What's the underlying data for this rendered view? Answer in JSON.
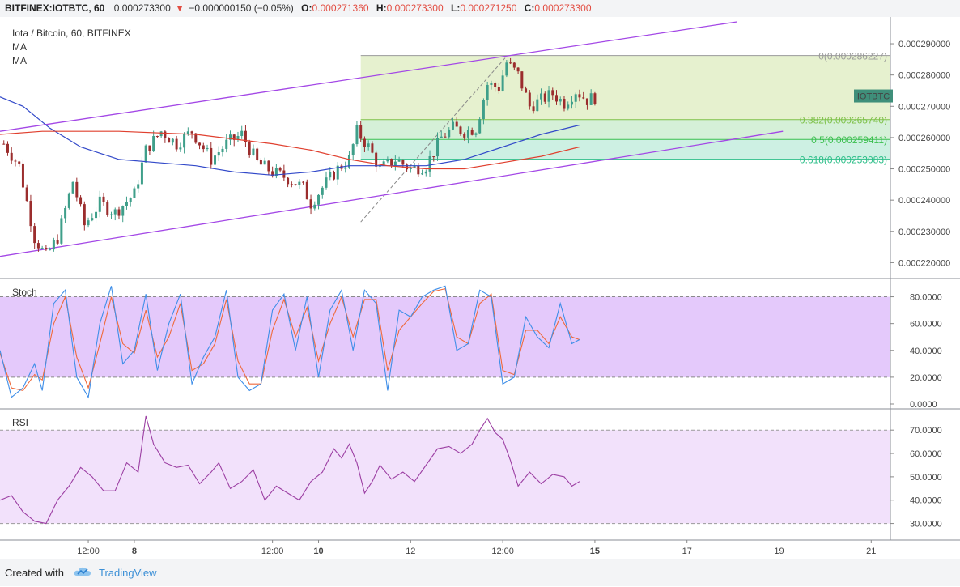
{
  "header": {
    "symbol": "BITFINEX:IOTBTC, 60",
    "last": "0.000273300",
    "change": "−0.000000150 (−0.05%)",
    "o_label": "O:",
    "o_value": "0.000271360",
    "h_label": "H:",
    "h_value": "0.000273300",
    "l_label": "L:",
    "l_value": "0.000271250",
    "c_label": "C:",
    "c_value": "0.000273300"
  },
  "legend": {
    "title": "Iota / Bitcoin, 60, BITFINEX",
    "ma1": "MA",
    "ma2": "MA"
  },
  "footer": {
    "created_with": "Created with",
    "brand": "TradingView",
    "logo_icon": "tradingview-cloud-icon"
  },
  "colors": {
    "up": "#3f9f8a",
    "down": "#9b2d2d",
    "ma_fast": "#3249c9",
    "ma_slow": "#e0402f",
    "channel": "#a347e6",
    "stoch_k": "#3e8ee8",
    "stoch_d": "#ef6a3b",
    "stoch_band": "#e4c9fb",
    "rsi_line": "#9c3fa3",
    "rsi_band": "#f2e1fb",
    "fib_top": "#e6f1cf",
    "fib_mid": "#d5f0d8",
    "fib_low": "#cdf0e3",
    "price_tag": "#3f8f7a"
  },
  "chart_data": {
    "type": "candlestick",
    "title": "Iota / Bitcoin, 60, BITFINEX",
    "price_axis": {
      "range": [
        0.000217,
        0.000297
      ],
      "ticks": [
        "0.000220000",
        "0.000230000",
        "0.000240000",
        "0.000250000",
        "0.000260000",
        "0.000270000",
        "0.000280000",
        "0.000290000"
      ],
      "tick_values": [
        0.00022,
        0.00023,
        0.00024,
        0.00025,
        0.00026,
        0.00027,
        0.00028,
        0.00029
      ]
    },
    "time_axis": {
      "ticks": [
        "12:00",
        "8",
        "12:00",
        "10",
        "12",
        "12:00",
        "15",
        "17",
        "19",
        "21"
      ],
      "tick_hours": [
        12,
        24,
        60,
        72,
        96,
        120,
        144,
        168,
        192,
        216
      ],
      "bold": [
        false,
        true,
        false,
        true,
        false,
        false,
        true,
        false,
        false,
        false
      ],
      "range_hours": [
        -11,
        221
      ]
    },
    "current_price_label": "IOTBTC",
    "current_price": 0.0002733,
    "price_path": [
      [
        -10,
        0.000258
      ],
      [
        -6,
        0.000251
      ],
      [
        -2,
        0.000228
      ],
      [
        1,
        0.000222
      ],
      [
        4,
        0.000228
      ],
      [
        8,
        0.000246
      ],
      [
        11,
        0.000232
      ],
      [
        15,
        0.000239
      ],
      [
        19,
        0.000236
      ],
      [
        24,
        0.000242
      ],
      [
        27,
        0.000256
      ],
      [
        31,
        0.000262
      ],
      [
        35,
        0.000258
      ],
      [
        39,
        0.000262
      ],
      [
        44,
        0.000253
      ],
      [
        48,
        0.000258
      ],
      [
        52,
        0.000261
      ],
      [
        56,
        0.000252
      ],
      [
        60,
        0.000249
      ],
      [
        64,
        0.000247
      ],
      [
        68,
        0.000244
      ],
      [
        70,
        0.000239
      ],
      [
        73,
        0.000244
      ],
      [
        77,
        0.00025
      ],
      [
        80,
        0.000253
      ],
      [
        82,
        0.000262
      ],
      [
        85,
        0.000257
      ],
      [
        88,
        0.00025
      ],
      [
        92,
        0.000253
      ],
      [
        96,
        0.00025
      ],
      [
        100,
        0.000251
      ],
      [
        104,
        0.00026
      ],
      [
        107,
        0.000263
      ],
      [
        110,
        0.000262
      ],
      [
        113,
        0.000263
      ],
      [
        116,
        0.000277
      ],
      [
        119,
        0.000276
      ],
      [
        121,
        0.000284
      ],
      [
        124,
        0.00028
      ],
      [
        127,
        0.00027
      ],
      [
        130,
        0.000272
      ],
      [
        133,
        0.000274
      ],
      [
        136,
        0.000271
      ],
      [
        139,
        0.000275
      ],
      [
        142,
        0.000272
      ],
      [
        144,
        0.000273
      ]
    ],
    "ma_fast_path": [
      [
        -11,
        0.000273
      ],
      [
        -5,
        0.00027
      ],
      [
        2,
        0.000263
      ],
      [
        10,
        0.000257
      ],
      [
        20,
        0.000253
      ],
      [
        30,
        0.000252
      ],
      [
        40,
        0.000251
      ],
      [
        50,
        0.000249
      ],
      [
        60,
        0.000248
      ],
      [
        70,
        0.000249
      ],
      [
        80,
        0.000251
      ],
      [
        90,
        0.000251
      ],
      [
        100,
        0.000251
      ],
      [
        110,
        0.000253
      ],
      [
        120,
        0.000257
      ],
      [
        130,
        0.000261
      ],
      [
        140,
        0.000264
      ]
    ],
    "ma_slow_path": [
      [
        -11,
        0.000261
      ],
      [
        0,
        0.000262
      ],
      [
        20,
        0.000262
      ],
      [
        40,
        0.000261
      ],
      [
        60,
        0.000258
      ],
      [
        70,
        0.000256
      ],
      [
        80,
        0.000253
      ],
      [
        90,
        0.000251
      ],
      [
        100,
        0.00025
      ],
      [
        110,
        0.00025
      ],
      [
        120,
        0.000252
      ],
      [
        130,
        0.000254
      ],
      [
        140,
        0.000257
      ]
    ],
    "channel_upper": [
      [
        -11,
        0.000262
      ],
      [
        181,
        0.000297
      ]
    ],
    "channel_lower": [
      [
        -11,
        0.000222
      ],
      [
        193,
        0.000262
      ]
    ],
    "fib_retracement": {
      "start_hour": 83,
      "end_hour": 221,
      "trend_from": [
        83,
        0.000233
      ],
      "trend_to": [
        121,
        0.000286
      ],
      "levels": [
        {
          "label": "0(0.000286227)",
          "value": 0.000286227,
          "color": "#9a9a9a"
        },
        {
          "label": "0.382(0.000265740)",
          "value": 0.00026574,
          "color": "#7ec14a"
        },
        {
          "label": "0.5(0.000259411)",
          "value": 0.000259411,
          "color": "#3cbf4f"
        },
        {
          "label": "0.618(0.000253083)",
          "value": 0.000253083,
          "color": "#2fbf8a"
        }
      ]
    },
    "stochastic": {
      "label": "Stoch",
      "range": [
        0,
        90
      ],
      "ticks": [
        "0.0000",
        "20.0000",
        "40.0000",
        "60.0000",
        "80.0000"
      ],
      "tick_values": [
        0,
        20,
        40,
        60,
        80
      ],
      "band": [
        20,
        80
      ],
      "k": [
        [
          -11,
          40
        ],
        [
          -8,
          5
        ],
        [
          -5,
          12
        ],
        [
          -2,
          30
        ],
        [
          0,
          10
        ],
        [
          3,
          75
        ],
        [
          6,
          85
        ],
        [
          9,
          20
        ],
        [
          12,
          5
        ],
        [
          15,
          60
        ],
        [
          18,
          88
        ],
        [
          21,
          30
        ],
        [
          24,
          40
        ],
        [
          27,
          82
        ],
        [
          30,
          25
        ],
        [
          33,
          60
        ],
        [
          36,
          82
        ],
        [
          39,
          15
        ],
        [
          42,
          35
        ],
        [
          45,
          50
        ],
        [
          48,
          85
        ],
        [
          51,
          20
        ],
        [
          54,
          10
        ],
        [
          57,
          15
        ],
        [
          60,
          70
        ],
        [
          63,
          82
        ],
        [
          66,
          40
        ],
        [
          69,
          80
        ],
        [
          72,
          20
        ],
        [
          75,
          70
        ],
        [
          78,
          85
        ],
        [
          81,
          40
        ],
        [
          84,
          85
        ],
        [
          87,
          75
        ],
        [
          90,
          10
        ],
        [
          93,
          70
        ],
        [
          96,
          65
        ],
        [
          99,
          80
        ],
        [
          102,
          85
        ],
        [
          105,
          88
        ],
        [
          108,
          40
        ],
        [
          111,
          45
        ],
        [
          114,
          85
        ],
        [
          117,
          80
        ],
        [
          120,
          15
        ],
        [
          123,
          20
        ],
        [
          126,
          65
        ],
        [
          129,
          50
        ],
        [
          132,
          42
        ],
        [
          135,
          75
        ],
        [
          138,
          45
        ],
        [
          140,
          48
        ]
      ],
      "d": [
        [
          -11,
          38
        ],
        [
          -8,
          12
        ],
        [
          -5,
          10
        ],
        [
          -2,
          22
        ],
        [
          0,
          18
        ],
        [
          3,
          60
        ],
        [
          6,
          80
        ],
        [
          9,
          35
        ],
        [
          12,
          12
        ],
        [
          15,
          45
        ],
        [
          18,
          80
        ],
        [
          21,
          45
        ],
        [
          24,
          38
        ],
        [
          27,
          70
        ],
        [
          30,
          35
        ],
        [
          33,
          50
        ],
        [
          36,
          75
        ],
        [
          39,
          25
        ],
        [
          42,
          30
        ],
        [
          45,
          45
        ],
        [
          48,
          78
        ],
        [
          51,
          32
        ],
        [
          54,
          15
        ],
        [
          57,
          15
        ],
        [
          60,
          55
        ],
        [
          63,
          78
        ],
        [
          66,
          50
        ],
        [
          69,
          72
        ],
        [
          72,
          32
        ],
        [
          75,
          60
        ],
        [
          78,
          80
        ],
        [
          81,
          50
        ],
        [
          84,
          78
        ],
        [
          87,
          78
        ],
        [
          90,
          25
        ],
        [
          93,
          55
        ],
        [
          96,
          65
        ],
        [
          99,
          75
        ],
        [
          102,
          84
        ],
        [
          105,
          86
        ],
        [
          108,
          50
        ],
        [
          111,
          45
        ],
        [
          114,
          75
        ],
        [
          117,
          82
        ],
        [
          120,
          25
        ],
        [
          123,
          22
        ],
        [
          126,
          55
        ],
        [
          129,
          55
        ],
        [
          132,
          45
        ],
        [
          135,
          65
        ],
        [
          138,
          50
        ],
        [
          140,
          48
        ]
      ]
    },
    "rsi": {
      "label": "RSI",
      "range": [
        25,
        77
      ],
      "ticks": [
        "30.0000",
        "40.0000",
        "50.0000",
        "60.0000",
        "70.0000"
      ],
      "tick_values": [
        30,
        40,
        50,
        60,
        70
      ],
      "band": [
        30,
        70
      ],
      "line": [
        [
          -11,
          40
        ],
        [
          -8,
          42
        ],
        [
          -5,
          35
        ],
        [
          -2,
          31
        ],
        [
          1,
          30
        ],
        [
          4,
          40
        ],
        [
          7,
          46
        ],
        [
          10,
          54
        ],
        [
          13,
          50
        ],
        [
          16,
          44
        ],
        [
          19,
          44
        ],
        [
          22,
          56
        ],
        [
          25,
          52
        ],
        [
          27,
          76
        ],
        [
          29,
          64
        ],
        [
          32,
          56
        ],
        [
          35,
          54
        ],
        [
          38,
          55
        ],
        [
          41,
          47
        ],
        [
          44,
          52
        ],
        [
          46,
          56
        ],
        [
          49,
          45
        ],
        [
          52,
          48
        ],
        [
          55,
          53
        ],
        [
          58,
          40
        ],
        [
          61,
          46
        ],
        [
          64,
          43
        ],
        [
          67,
          40
        ],
        [
          70,
          48
        ],
        [
          73,
          52
        ],
        [
          76,
          62
        ],
        [
          78,
          58
        ],
        [
          80,
          64
        ],
        [
          82,
          56
        ],
        [
          84,
          43
        ],
        [
          86,
          48
        ],
        [
          88,
          55
        ],
        [
          91,
          49
        ],
        [
          94,
          52
        ],
        [
          97,
          48
        ],
        [
          100,
          55
        ],
        [
          103,
          62
        ],
        [
          106,
          63
        ],
        [
          109,
          60
        ],
        [
          112,
          64
        ],
        [
          114,
          70
        ],
        [
          116,
          75
        ],
        [
          118,
          69
        ],
        [
          120,
          66
        ],
        [
          122,
          57
        ],
        [
          124,
          46
        ],
        [
          127,
          52
        ],
        [
          130,
          47
        ],
        [
          133,
          51
        ],
        [
          136,
          50
        ],
        [
          138,
          46
        ],
        [
          140,
          48
        ]
      ]
    }
  }
}
